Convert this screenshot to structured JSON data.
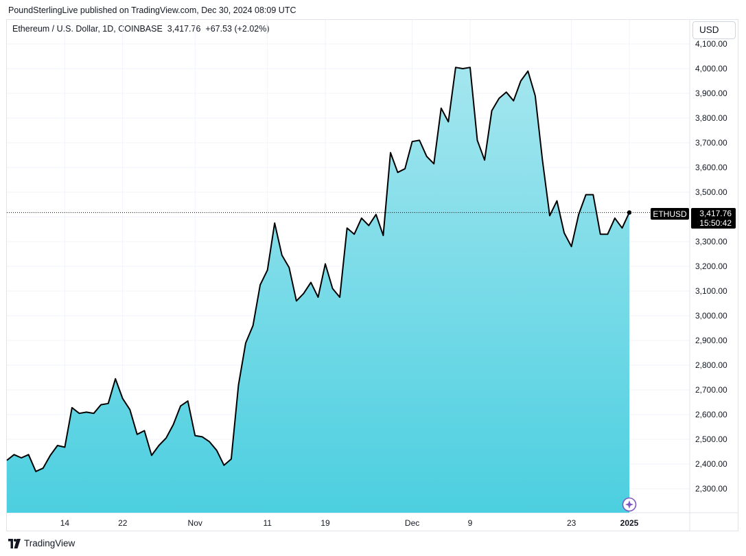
{
  "header": {
    "published": "PoundSterlingLive published on TradingView.com, Dec 30, 2024 08:09 UTC"
  },
  "legend": {
    "symbol": "Ethereum / U.S. Dollar, 1D, COINBASE",
    "price": "3,417.76",
    "change": "+67.53 (+2.02%)"
  },
  "currency_button": "USD",
  "footer": {
    "brand": "TradingView"
  },
  "price_label": {
    "symbol": "ETHUSD",
    "price": "3,417.76",
    "countdown": "15:50:42"
  },
  "colors": {
    "line": "#000000",
    "fill_top": "#a4e6ef",
    "fill_bottom": "#4ccfe0",
    "label_bg": "#000000"
  },
  "chart_data": {
    "type": "area",
    "title": "Ethereum / U.S. Dollar, 1D, COINBASE",
    "series": [
      {
        "name": "ETHUSD",
        "values": [
          2415,
          2438,
          2425,
          2438,
          2370,
          2383,
          2435,
          2475,
          2468,
          2628,
          2605,
          2610,
          2605,
          2640,
          2645,
          2745,
          2665,
          2620,
          2520,
          2535,
          2435,
          2475,
          2505,
          2560,
          2635,
          2655,
          2515,
          2510,
          2490,
          2455,
          2395,
          2420,
          2720,
          2890,
          2960,
          3125,
          3185,
          3375,
          3245,
          3195,
          3060,
          3090,
          3135,
          3075,
          3210,
          3110,
          3075,
          3355,
          3330,
          3395,
          3365,
          3410,
          3325,
          3660,
          3580,
          3595,
          3705,
          3710,
          3645,
          3615,
          3840,
          3785,
          4005,
          4000,
          4005,
          3710,
          3630,
          3830,
          3880,
          3905,
          3870,
          3950,
          3990,
          3890,
          3630,
          3405,
          3465,
          3335,
          3280,
          3410,
          3490,
          3490,
          3330,
          3330,
          3395,
          3355,
          3418
        ],
        "last_value": 3417.76
      }
    ],
    "x_ticks": [
      {
        "label": "14",
        "index": 8
      },
      {
        "label": "22",
        "index": 16
      },
      {
        "label": "Nov",
        "index": 26
      },
      {
        "label": "11",
        "index": 36
      },
      {
        "label": "19",
        "index": 44
      },
      {
        "label": "Dec",
        "index": 56
      },
      {
        "label": "9",
        "index": 64
      },
      {
        "label": "23",
        "index": 78
      },
      {
        "label": "2025",
        "index": 86,
        "bold": true
      }
    ],
    "y_ticks": [
      "2,300.00",
      "2,400.00",
      "2,500.00",
      "2,600.00",
      "2,700.00",
      "2,800.00",
      "2,900.00",
      "3,000.00",
      "3,100.00",
      "3,200.00",
      "3,300.00",
      "3,400.00",
      "3,500.00",
      "3,600.00",
      "3,700.00",
      "3,800.00",
      "3,900.00",
      "4,000.00",
      "4,100.00"
    ],
    "y_tick_values": [
      2300,
      2400,
      2500,
      2600,
      2700,
      2800,
      2900,
      3000,
      3100,
      3200,
      3300,
      3400,
      3500,
      3600,
      3700,
      3800,
      3900,
      4000,
      4100
    ],
    "ylim": [
      2205,
      4100
    ],
    "grid": true
  }
}
